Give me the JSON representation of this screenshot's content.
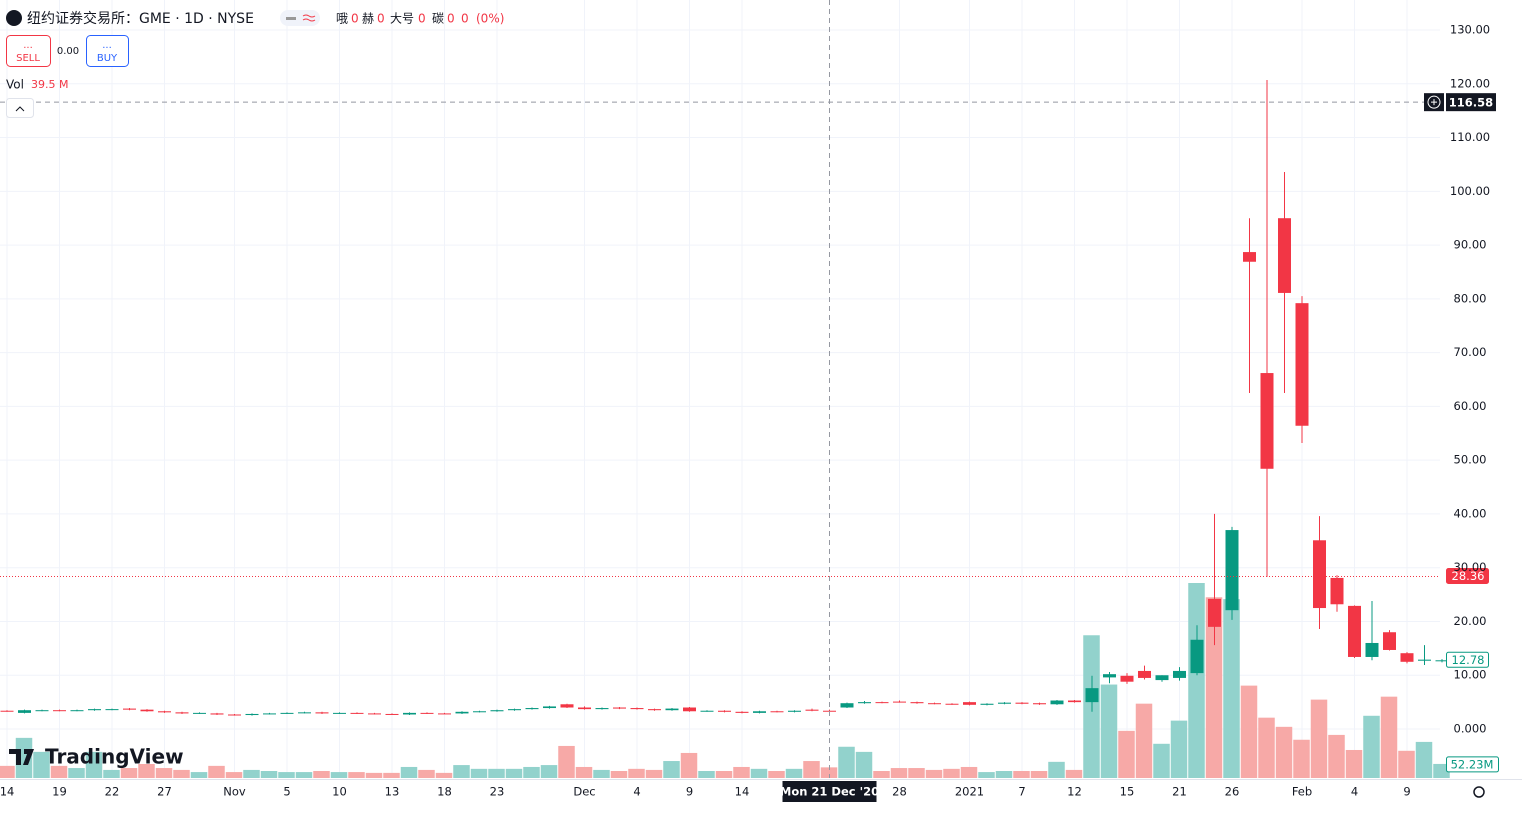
{
  "header": {
    "title": "纽约证券交易所：GME · 1D · NYSE",
    "ohlc_legend": {
      "labels": [
        "哦",
        "赫",
        "大号",
        "碳"
      ],
      "values": [
        0,
        0,
        0,
        0
      ],
      "change": 0,
      "change_percent": {
        "value": 0,
        "label": "(0%)"
      }
    },
    "trade_panel": {
      "sell_dots": "...",
      "sell": "SELL",
      "spread": {
        "value": 0,
        "label": "0.00"
      },
      "buy_dots": "...",
      "buy": "BUY"
    },
    "watermark": "TradingView"
  },
  "chart_data": {
    "type": "candlestick",
    "categories": [
      "2020-10-14",
      "2020-10-15",
      "2020-10-16",
      "2020-10-19",
      "2020-10-20",
      "2020-10-21",
      "2020-10-22",
      "2020-10-23",
      "2020-10-26",
      "2020-10-27",
      "2020-10-28",
      "2020-10-29",
      "2020-10-30",
      "2020-11-02",
      "2020-11-03",
      "2020-11-04",
      "2020-11-05",
      "2020-11-06",
      "2020-11-09",
      "2020-11-10",
      "2020-11-11",
      "2020-11-12",
      "2020-11-13",
      "2020-11-16",
      "2020-11-17",
      "2020-11-18",
      "2020-11-19",
      "2020-11-20",
      "2020-11-23",
      "2020-11-24",
      "2020-11-25",
      "2020-11-26",
      "2020-11-27",
      "2020-12-01",
      "2020-12-02",
      "2020-12-03",
      "2020-12-04",
      "2020-12-07",
      "2020-12-08",
      "2020-12-09",
      "2020-12-10",
      "2020-12-11",
      "2020-12-14",
      "2020-12-15",
      "2020-12-16",
      "2020-12-17",
      "2020-12-18",
      "2020-12-21",
      "2020-12-22",
      "2020-12-23",
      "2020-12-24",
      "2020-12-28",
      "2020-12-29",
      "2020-12-30",
      "2020-12-31",
      "2021-01-04",
      "2021-01-05",
      "2021-01-06",
      "2021-01-07",
      "2021-01-08",
      "2021-01-11",
      "2021-01-12",
      "2021-01-13",
      "2021-01-14",
      "2021-01-15",
      "2021-01-19",
      "2021-01-20",
      "2021-01-21",
      "2021-01-22",
      "2021-01-25",
      "2021-01-26",
      "2021-01-27",
      "2021-01-28",
      "2021-01-29",
      "2021-02-01",
      "2021-02-02",
      "2021-02-03",
      "2021-02-04",
      "2021-02-05",
      "2021-02-08",
      "2021-02-09",
      "2021-02-10",
      "2021-02-11"
    ],
    "open": [
      3.4,
      3.0,
      3.4,
      3.5,
      3.4,
      3.5,
      3.6,
      3.8,
      3.6,
      3.3,
      3.1,
      2.9,
      2.9,
      2.7,
      2.6,
      2.8,
      2.9,
      3.0,
      3.1,
      2.9,
      3.0,
      2.9,
      2.8,
      2.7,
      3.0,
      2.9,
      2.9,
      3.2,
      3.3,
      3.5,
      3.7,
      3.9,
      4.6,
      4.0,
      3.7,
      4.0,
      3.9,
      3.7,
      3.5,
      4.0,
      3.3,
      3.4,
      3.2,
      3.0,
      3.3,
      3.2,
      3.6,
      3.4,
      4.0,
      4.8,
      5.0,
      5.1,
      5.0,
      4.8,
      4.7,
      5.0,
      4.5,
      4.7,
      4.9,
      4.8,
      4.6,
      5.3,
      5.0,
      9.6,
      9.9,
      10.8,
      9.1,
      9.5,
      10.4,
      24.2,
      22.1,
      88.7,
      66.2,
      95.0,
      79.2,
      35.1,
      28.1,
      22.9,
      13.4,
      18.0,
      14.1,
      12.7,
      12.6
    ],
    "high": [
      3.5,
      3.6,
      3.6,
      3.6,
      3.6,
      3.8,
      3.8,
      3.9,
      3.7,
      3.4,
      3.2,
      3.1,
      3.0,
      2.8,
      2.9,
      3.0,
      3.1,
      3.2,
      3.2,
      3.1,
      3.1,
      3.0,
      2.9,
      3.1,
      3.1,
      3.0,
      3.3,
      3.4,
      3.6,
      3.8,
      4.0,
      4.3,
      4.7,
      4.2,
      4.0,
      4.1,
      4.0,
      3.8,
      3.9,
      4.1,
      3.5,
      3.5,
      3.3,
      3.4,
      3.4,
      3.5,
      3.8,
      3.6,
      4.9,
      5.2,
      5.1,
      5.3,
      5.1,
      4.9,
      4.8,
      5.1,
      4.8,
      5.0,
      5.0,
      4.9,
      5.4,
      5.4,
      9.9,
      10.6,
      10.4,
      11.8,
      10.0,
      11.5,
      19.3,
      40.0,
      37.6,
      95.0,
      120.7,
      103.6,
      80.5,
      39.6,
      28.6,
      23.0,
      23.8,
      18.4,
      14.3,
      15.6,
      13.0
    ],
    "low": [
      3.2,
      2.9,
      3.3,
      3.3,
      3.3,
      3.4,
      3.5,
      3.5,
      3.2,
      3.0,
      2.8,
      2.8,
      2.6,
      2.5,
      2.5,
      2.7,
      2.8,
      2.9,
      2.8,
      2.8,
      2.8,
      2.7,
      2.6,
      2.6,
      2.8,
      2.8,
      2.8,
      3.1,
      3.2,
      3.4,
      3.6,
      3.8,
      3.9,
      3.6,
      3.6,
      3.7,
      3.6,
      3.4,
      3.4,
      3.2,
      3.2,
      3.1,
      2.9,
      2.9,
      3.1,
      3.1,
      3.3,
      3.2,
      3.9,
      4.7,
      4.8,
      4.9,
      4.7,
      4.6,
      4.5,
      4.4,
      4.4,
      4.6,
      4.6,
      4.5,
      4.5,
      4.9,
      3.2,
      8.5,
      8.4,
      9.2,
      8.8,
      9.0,
      10.0,
      15.6,
      20.3,
      62.5,
      28.3,
      62.5,
      53.2,
      18.6,
      21.8,
      13.2,
      12.8,
      14.6,
      12.2,
      11.9,
      12.4
    ],
    "close": [
      3.3,
      3.5,
      3.5,
      3.4,
      3.5,
      3.7,
      3.7,
      3.6,
      3.3,
      3.1,
      2.9,
      3.0,
      2.7,
      2.6,
      2.8,
      2.9,
      3.0,
      3.1,
      2.9,
      3.0,
      2.9,
      2.8,
      2.7,
      3.0,
      2.9,
      2.85,
      3.2,
      3.3,
      3.5,
      3.7,
      3.9,
      4.2,
      4.0,
      3.7,
      3.9,
      3.8,
      3.7,
      3.5,
      3.8,
      3.3,
      3.4,
      3.2,
      3.0,
      3.3,
      3.2,
      3.4,
      3.4,
      3.3,
      4.8,
      5.0,
      4.9,
      5.0,
      4.8,
      4.7,
      4.6,
      4.5,
      4.7,
      4.9,
      4.7,
      4.6,
      5.3,
      5.0,
      7.6,
      10.2,
      8.8,
      9.5,
      10.0,
      10.8,
      16.6,
      19.0,
      37.0,
      86.9,
      48.4,
      81.1,
      56.4,
      22.5,
      23.2,
      13.4,
      16.0,
      14.7,
      12.5,
      12.9,
      12.78
    ],
    "up_color": "#089981",
    "down_color": "#f23645",
    "volume": {
      "name": "Vol",
      "hover_label": "39.5 M",
      "last_label": "52.23M",
      "up_color": "#92d2cc",
      "down_color": "#f7a9a7",
      "values": [
        45,
        149,
        97,
        45,
        37,
        97,
        30,
        37,
        52,
        37,
        30,
        22,
        45,
        22,
        30,
        26,
        22,
        22,
        26,
        22,
        22,
        19,
        19,
        41,
        30,
        19,
        48,
        34,
        34,
        34,
        41,
        48,
        119,
        41,
        30,
        26,
        34,
        30,
        63,
        93,
        26,
        26,
        41,
        34,
        26,
        34,
        63,
        39.5,
        116,
        97,
        26,
        37,
        37,
        30,
        34,
        41,
        22,
        26,
        26,
        26,
        60,
        30,
        530,
        347,
        175,
        276,
        127,
        213,
        724,
        671,
        664,
        343,
        224,
        190,
        142,
        291,
        160,
        104,
        231,
        302,
        101,
        134,
        52.23
      ]
    },
    "ylim": [
      -9.11,
      135.58
    ],
    "yticks": [
      {
        "value": 0,
        "label": "0.000"
      },
      {
        "value": 10,
        "label": "10.00"
      },
      {
        "value": 20,
        "label": "20.00"
      },
      {
        "value": 30,
        "label": "30.00"
      },
      {
        "value": 40,
        "label": "40.00"
      },
      {
        "value": 50,
        "label": "50.00"
      },
      {
        "value": 60,
        "label": "60.00"
      },
      {
        "value": 70,
        "label": "70.00"
      },
      {
        "value": 80,
        "label": "80.00"
      },
      {
        "value": 90,
        "label": "90.00"
      },
      {
        "value": 100,
        "label": "100.00"
      },
      {
        "value": 110,
        "label": "110.00"
      },
      {
        "value": 120,
        "label": "120.00"
      },
      {
        "value": 130,
        "label": "130.00"
      }
    ],
    "xticks": [
      {
        "value": "2020-10-14",
        "label": "14"
      },
      {
        "value": "2020-10-19",
        "label": "19"
      },
      {
        "value": "2020-10-22",
        "label": "22"
      },
      {
        "value": "2020-10-27",
        "label": "27"
      },
      {
        "value": "2020-11-02",
        "label": "Nov"
      },
      {
        "value": "2020-11-05",
        "label": "5"
      },
      {
        "value": "2020-11-10",
        "label": "10"
      },
      {
        "value": "2020-11-13",
        "label": "13"
      },
      {
        "value": "2020-11-18",
        "label": "18"
      },
      {
        "value": "2020-11-23",
        "label": "23"
      },
      {
        "value": "2020-12-01",
        "label": "Dec"
      },
      {
        "value": "2020-12-04",
        "label": "4"
      },
      {
        "value": "2020-12-09",
        "label": "9"
      },
      {
        "value": "2020-12-14",
        "label": "14"
      },
      {
        "value": "2020-12-28",
        "label": "28"
      },
      {
        "value": "2021-01-04",
        "label": "2021"
      },
      {
        "value": "2021-01-07",
        "label": "7"
      },
      {
        "value": "2021-01-12",
        "label": "12"
      },
      {
        "value": "2021-01-15",
        "label": "15"
      },
      {
        "value": "2021-01-21",
        "label": "21"
      },
      {
        "value": "2021-01-26",
        "label": "26"
      },
      {
        "value": "2021-02-01",
        "label": "Feb"
      },
      {
        "value": "2021-02-04",
        "label": "4"
      },
      {
        "value": "2021-02-09",
        "label": "9"
      }
    ],
    "grid": true,
    "price_lines": [
      {
        "value": 28.36,
        "color": "#f23645",
        "filled": true,
        "dotted": true
      },
      {
        "value": 12.78,
        "color": "#089981",
        "filled": false,
        "dotted": false
      }
    ],
    "crosshair": {
      "x": "2020-12-21",
      "x_label": "Mon 21 Dec '20",
      "y": 116.58
    }
  }
}
